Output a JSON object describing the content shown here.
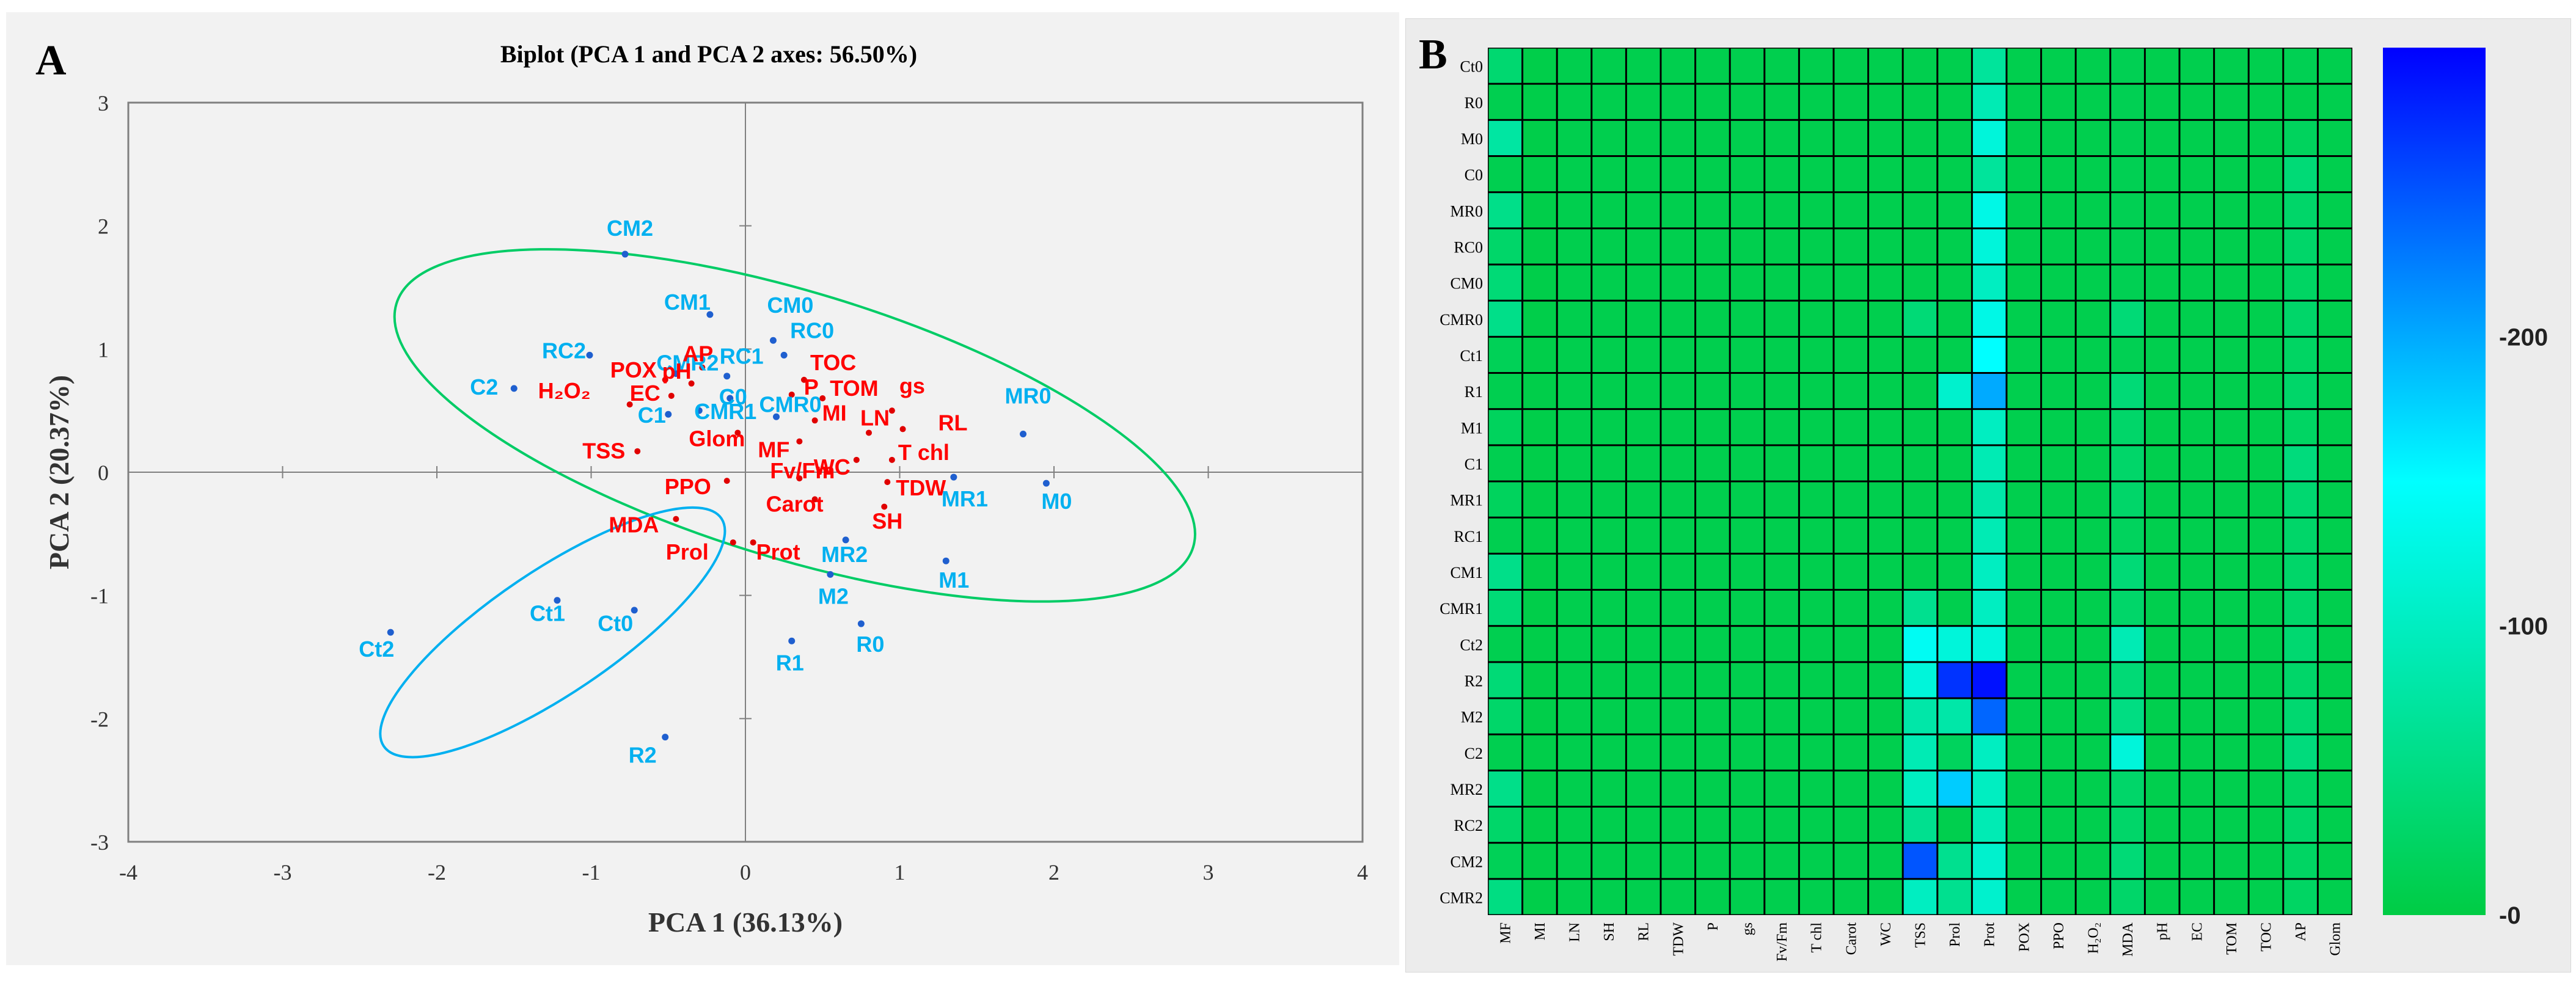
{
  "panelA": {
    "letter": "A",
    "chart_data": {
      "type": "scatter",
      "title": "Biplot (PCA 1 and PCA 2 axes: 56.50%)",
      "xlabel": "PCA 1 (36.13%)",
      "ylabel": "PCA 2 (20.37%)",
      "xlim": [
        -4,
        4
      ],
      "ylim": [
        -3,
        3
      ],
      "xticks": [
        "-4",
        "-3",
        "-2",
        "-1",
        "0",
        "1",
        "2",
        "3",
        "4"
      ],
      "yticks": [
        "-3",
        "-2",
        "-1",
        "0",
        "1",
        "2",
        "3"
      ],
      "colors": {
        "observations": "#00b0f0",
        "variables": "#ff0000",
        "ellipse_treat": "#00cc66",
        "ellipse_ct": "#00b0f0"
      },
      "observations": [
        {
          "label": "CM2",
          "x": -0.78,
          "y": 1.77
        },
        {
          "label": "CM1",
          "x": -0.23,
          "y": 1.28
        },
        {
          "label": "CM0",
          "x": 0.18,
          "y": 1.07
        },
        {
          "label": "RC0",
          "x": 0.25,
          "y": 0.95
        },
        {
          "label": "RC2",
          "x": -1.01,
          "y": 0.95
        },
        {
          "label": "CMR2",
          "x": -0.45,
          "y": 0.8
        },
        {
          "label": "RC1",
          "x": -0.12,
          "y": 0.78
        },
        {
          "label": "C2",
          "x": -1.5,
          "y": 0.68
        },
        {
          "label": "C0",
          "x": -0.1,
          "y": 0.6
        },
        {
          "label": "CMR0",
          "x": 0.2,
          "y": 0.45
        },
        {
          "label": "C1",
          "x": -0.5,
          "y": 0.47
        },
        {
          "label": "CMR1",
          "x": -0.3,
          "y": 0.5
        },
        {
          "label": "MR0",
          "x": 1.8,
          "y": 0.31
        },
        {
          "label": "M0",
          "x": 1.95,
          "y": -0.09
        },
        {
          "label": "MR1",
          "x": 1.35,
          "y": -0.04
        },
        {
          "label": "MR2",
          "x": 0.65,
          "y": -0.55
        },
        {
          "label": "M1",
          "x": 1.3,
          "y": -0.72
        },
        {
          "label": "M2",
          "x": 0.55,
          "y": -0.83
        },
        {
          "label": "R0",
          "x": 0.75,
          "y": -1.23
        },
        {
          "label": "R1",
          "x": 0.3,
          "y": -1.37
        },
        {
          "label": "Ct1",
          "x": -1.22,
          "y": -1.04
        },
        {
          "label": "Ct0",
          "x": -0.72,
          "y": -1.12
        },
        {
          "label": "Ct2",
          "x": -2.3,
          "y": -1.3
        },
        {
          "label": "R2",
          "x": -0.52,
          "y": -2.15
        }
      ],
      "variables": [
        {
          "label": "AP",
          "x": -0.28,
          "y": 0.85
        },
        {
          "label": "pH",
          "x": -0.35,
          "y": 0.72
        },
        {
          "label": "POX",
          "x": -0.52,
          "y": 0.75
        },
        {
          "label": "EC",
          "x": -0.48,
          "y": 0.62
        },
        {
          "label": "H₂O₂",
          "x": -0.75,
          "y": 0.55
        },
        {
          "label": "Glom",
          "x": -0.05,
          "y": 0.32
        },
        {
          "label": "TSS",
          "x": -0.7,
          "y": 0.17
        },
        {
          "label": "TOC",
          "x": 0.38,
          "y": 0.75
        },
        {
          "label": "P",
          "x": 0.3,
          "y": 0.63
        },
        {
          "label": "TOM",
          "x": 0.5,
          "y": 0.6
        },
        {
          "label": "gs",
          "x": 0.95,
          "y": 0.5
        },
        {
          "label": "MI",
          "x": 0.45,
          "y": 0.42
        },
        {
          "label": "LN",
          "x": 0.8,
          "y": 0.32
        },
        {
          "label": "RL",
          "x": 1.02,
          "y": 0.35
        },
        {
          "label": "MF",
          "x": 0.35,
          "y": 0.25
        },
        {
          "label": "T chl",
          "x": 0.95,
          "y": 0.1
        },
        {
          "label": "WC",
          "x": 0.72,
          "y": 0.1
        },
        {
          "label": "Fv/Fm",
          "x": 0.35,
          "y": -0.05
        },
        {
          "label": "TDW",
          "x": 0.92,
          "y": -0.08
        },
        {
          "label": "Carot",
          "x": 0.45,
          "y": -0.22
        },
        {
          "label": "SH",
          "x": 0.9,
          "y": -0.28
        },
        {
          "label": "PPO",
          "x": -0.12,
          "y": -0.07
        },
        {
          "label": "MDA",
          "x": -0.45,
          "y": -0.38
        },
        {
          "label": "Prol",
          "x": -0.08,
          "y": -0.57
        },
        {
          "label": "Prot",
          "x": 0.05,
          "y": -0.57
        }
      ]
    }
  },
  "panelB": {
    "letter": "B",
    "chart_data": {
      "type": "heatmap",
      "rows": [
        "Ct0",
        "R0",
        "M0",
        "C0",
        "MR0",
        "RC0",
        "CM0",
        "CMR0",
        "Ct1",
        "R1",
        "M1",
        "C1",
        "MR1",
        "RC1",
        "CM1",
        "CMR1",
        "Ct2",
        "R2",
        "M2",
        "C2",
        "MR2",
        "RC2",
        "CM2",
        "CMR2"
      ],
      "cols": [
        "MF",
        "MI",
        "LN",
        "SH",
        "RL",
        "TDW",
        "P",
        "gs",
        "Fv/Fm",
        "T chl",
        "Carot",
        "WC",
        "TSS",
        "Prol",
        "Prot",
        "POX",
        "PPO",
        "H₂O₂",
        "MDA",
        "pH",
        "EC",
        "TOM",
        "TOC",
        "AP",
        "Glom"
      ],
      "values": [
        [
          35,
          5,
          8,
          8,
          8,
          8,
          8,
          8,
          8,
          8,
          8,
          8,
          8,
          8,
          70,
          8,
          8,
          8,
          12,
          8,
          8,
          8,
          8,
          12,
          8
        ],
        [
          10,
          5,
          8,
          8,
          8,
          8,
          8,
          8,
          8,
          8,
          8,
          8,
          8,
          8,
          90,
          8,
          8,
          8,
          12,
          8,
          8,
          8,
          8,
          8,
          8
        ],
        [
          75,
          5,
          8,
          8,
          8,
          8,
          8,
          8,
          8,
          8,
          8,
          8,
          8,
          8,
          120,
          8,
          8,
          8,
          12,
          8,
          8,
          8,
          8,
          20,
          8
        ],
        [
          10,
          5,
          8,
          8,
          8,
          8,
          8,
          8,
          8,
          8,
          8,
          8,
          8,
          8,
          70,
          8,
          8,
          8,
          12,
          8,
          8,
          8,
          8,
          40,
          8
        ],
        [
          55,
          5,
          8,
          8,
          8,
          8,
          8,
          8,
          8,
          8,
          8,
          8,
          8,
          8,
          130,
          8,
          8,
          8,
          12,
          8,
          8,
          8,
          8,
          30,
          8
        ],
        [
          30,
          5,
          8,
          8,
          8,
          8,
          8,
          8,
          8,
          8,
          8,
          8,
          8,
          8,
          120,
          8,
          8,
          8,
          12,
          8,
          8,
          8,
          8,
          30,
          8
        ],
        [
          40,
          5,
          8,
          8,
          8,
          8,
          8,
          8,
          8,
          8,
          8,
          8,
          8,
          8,
          100,
          8,
          8,
          8,
          12,
          8,
          8,
          8,
          8,
          25,
          8
        ],
        [
          55,
          5,
          8,
          8,
          8,
          8,
          8,
          8,
          8,
          8,
          8,
          8,
          40,
          8,
          130,
          8,
          8,
          8,
          40,
          8,
          8,
          8,
          8,
          30,
          8
        ],
        [
          15,
          5,
          8,
          8,
          8,
          8,
          8,
          8,
          8,
          8,
          8,
          8,
          8,
          8,
          150,
          8,
          8,
          8,
          12,
          8,
          8,
          8,
          8,
          25,
          8
        ],
        [
          10,
          5,
          8,
          8,
          8,
          8,
          8,
          8,
          8,
          8,
          8,
          8,
          8,
          110,
          200,
          8,
          8,
          8,
          40,
          8,
          8,
          8,
          8,
          30,
          8
        ],
        [
          20,
          5,
          8,
          8,
          8,
          8,
          8,
          8,
          8,
          8,
          8,
          8,
          8,
          8,
          100,
          8,
          8,
          8,
          30,
          8,
          8,
          8,
          8,
          25,
          8
        ],
        [
          10,
          5,
          8,
          8,
          8,
          8,
          8,
          8,
          8,
          8,
          8,
          8,
          8,
          8,
          90,
          8,
          8,
          8,
          30,
          8,
          8,
          8,
          8,
          45,
          8
        ],
        [
          20,
          5,
          8,
          8,
          8,
          8,
          8,
          8,
          8,
          8,
          8,
          8,
          8,
          8,
          80,
          8,
          8,
          8,
          30,
          8,
          8,
          8,
          8,
          35,
          8
        ],
        [
          10,
          5,
          8,
          8,
          8,
          8,
          8,
          8,
          8,
          8,
          8,
          8,
          8,
          8,
          90,
          8,
          8,
          8,
          20,
          8,
          8,
          8,
          8,
          30,
          8
        ],
        [
          55,
          5,
          8,
          8,
          8,
          8,
          8,
          8,
          8,
          8,
          8,
          8,
          8,
          8,
          100,
          8,
          8,
          8,
          40,
          8,
          8,
          8,
          8,
          30,
          8
        ],
        [
          40,
          5,
          8,
          8,
          8,
          8,
          8,
          8,
          8,
          8,
          8,
          8,
          60,
          8,
          100,
          8,
          8,
          8,
          30,
          8,
          8,
          8,
          8,
          30,
          8
        ],
        [
          10,
          5,
          8,
          8,
          8,
          8,
          8,
          8,
          8,
          8,
          8,
          8,
          140,
          120,
          120,
          8,
          8,
          8,
          90,
          8,
          8,
          8,
          8,
          35,
          8
        ],
        [
          40,
          5,
          8,
          8,
          8,
          8,
          8,
          8,
          8,
          8,
          8,
          8,
          120,
          270,
          290,
          8,
          8,
          8,
          40,
          8,
          8,
          8,
          8,
          30,
          8
        ],
        [
          30,
          5,
          8,
          8,
          8,
          8,
          8,
          8,
          8,
          8,
          8,
          8,
          80,
          80,
          240,
          8,
          8,
          8,
          50,
          8,
          8,
          8,
          8,
          35,
          8
        ],
        [
          10,
          5,
          8,
          8,
          8,
          8,
          8,
          8,
          8,
          8,
          8,
          8,
          90,
          20,
          100,
          8,
          8,
          8,
          120,
          8,
          8,
          8,
          8,
          45,
          8
        ],
        [
          55,
          5,
          8,
          8,
          8,
          8,
          8,
          8,
          8,
          8,
          8,
          8,
          100,
          180,
          100,
          8,
          8,
          8,
          30,
          8,
          8,
          8,
          8,
          25,
          8
        ],
        [
          30,
          5,
          8,
          8,
          8,
          8,
          8,
          8,
          8,
          8,
          8,
          8,
          60,
          8,
          90,
          8,
          8,
          8,
          30,
          8,
          8,
          8,
          8,
          30,
          8
        ],
        [
          15,
          5,
          8,
          8,
          8,
          8,
          8,
          8,
          8,
          8,
          8,
          8,
          250,
          60,
          110,
          8,
          8,
          8,
          40,
          8,
          8,
          8,
          8,
          25,
          8
        ],
        [
          50,
          5,
          8,
          8,
          8,
          8,
          8,
          8,
          8,
          8,
          8,
          8,
          100,
          60,
          110,
          8,
          8,
          8,
          30,
          8,
          8,
          8,
          8,
          25,
          8
        ]
      ],
      "colorbar": {
        "ticks": [
          "-0",
          "-100",
          "-200"
        ],
        "tick_values": [
          0,
          100,
          200
        ],
        "range": [
          0,
          300
        ],
        "colors": [
          "#00cc44",
          "#00ffff",
          "#0000ff"
        ]
      }
    }
  }
}
